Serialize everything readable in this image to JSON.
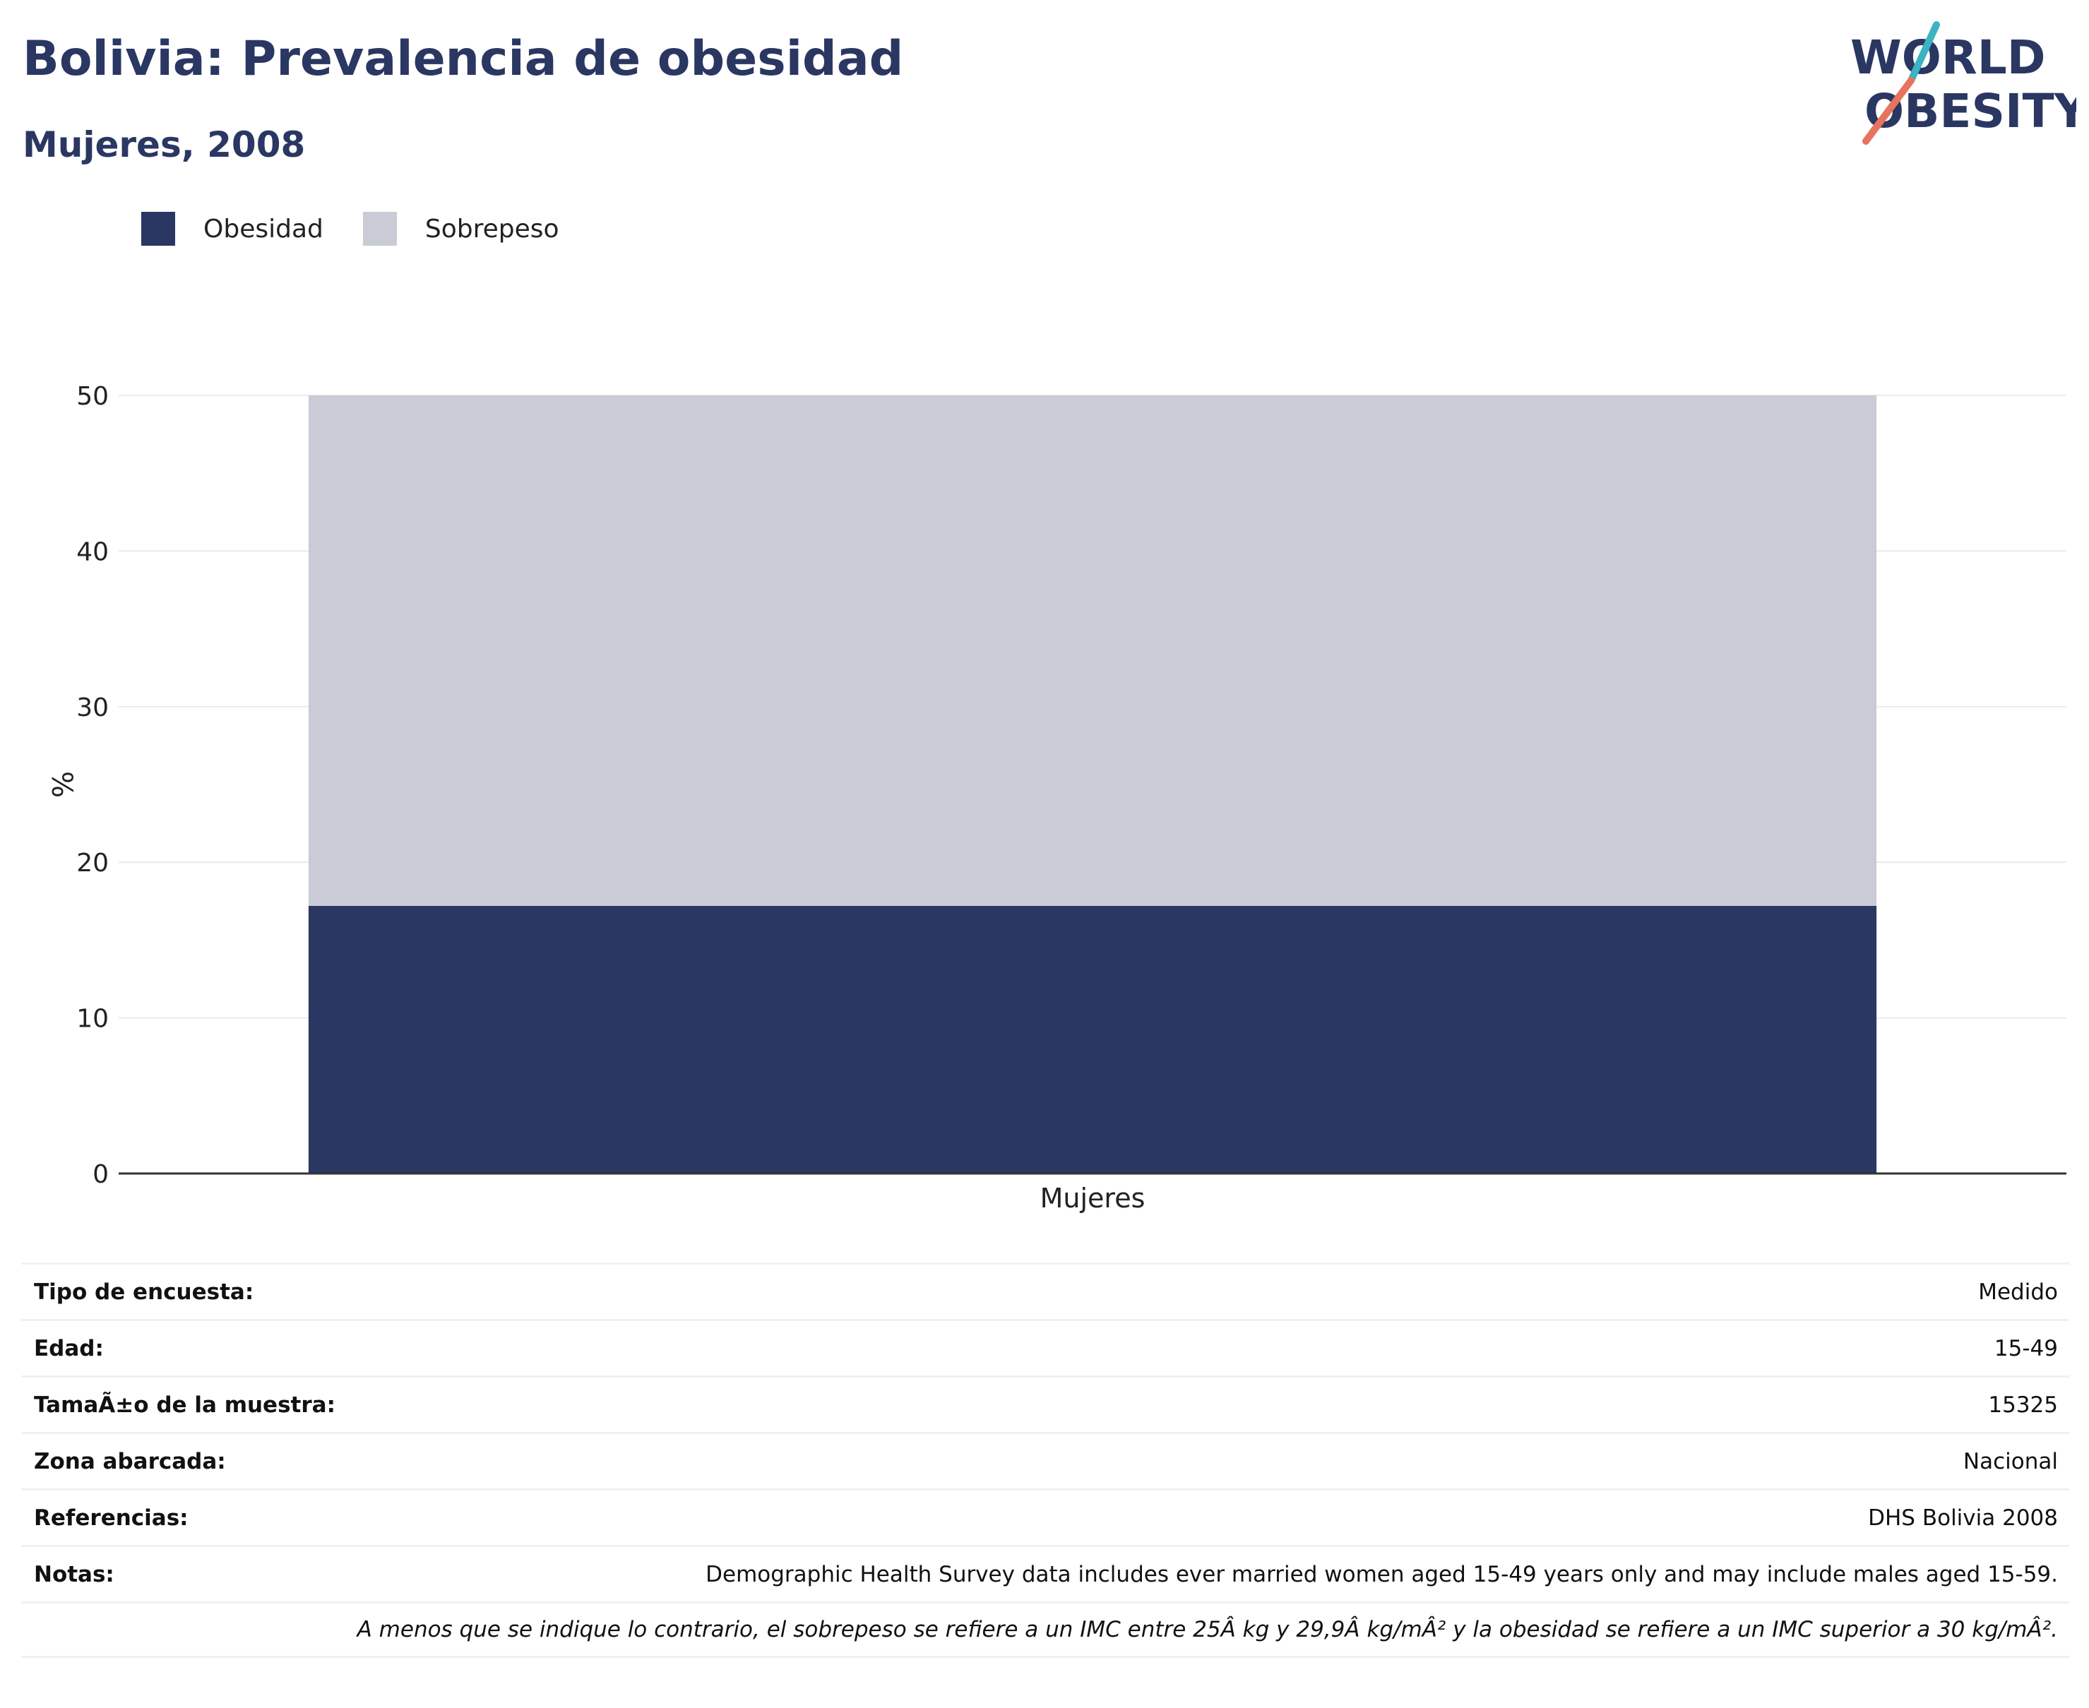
{
  "header": {
    "title": "Bolivia: Prevalencia de obesidad",
    "subtitle": "Mujeres, 2008"
  },
  "logo": {
    "line1": "WORLD",
    "line2": "OBESITY",
    "accent_teal": "#3bb3c3",
    "accent_coral": "#e8735f"
  },
  "colors": {
    "obesidad": "#2a3762",
    "sobrepeso": "#c9ccd7",
    "text": "#2a3762"
  },
  "chart_data": {
    "type": "bar",
    "stacked": true,
    "categories": [
      "Mujeres"
    ],
    "series": [
      {
        "name": "Obesidad",
        "values": [
          17.2
        ],
        "color": "#2a3762"
      },
      {
        "name": "Sobrepeso",
        "values": [
          32.8
        ],
        "color": "#c9ccd7"
      }
    ],
    "ylabel": "%",
    "xlabel": "",
    "ylim": [
      0,
      50
    ],
    "yticks": [
      0,
      10,
      20,
      30,
      40,
      50
    ],
    "grid": true,
    "legend_position": "top-left"
  },
  "info": {
    "rows": [
      {
        "key": "Tipo de encuesta:",
        "value": "Medido"
      },
      {
        "key": "Edad:",
        "value": "15-49"
      },
      {
        "key": "TamaÃ±o de la muestra:",
        "value": "15325"
      },
      {
        "key": "Zona abarcada:",
        "value": "Nacional"
      },
      {
        "key": "Referencias:",
        "value": "DHS Bolivia 2008"
      },
      {
        "key": "Notas:",
        "value": "Demographic Health Survey data includes ever married women aged 15-49 years only and may include males aged 15-59."
      }
    ],
    "footnote": "A menos que se indique lo contrario, el sobrepeso se refiere a un IMC entre 25Â kg y 29,9Â kg/mÂ² y la obesidad se refiere a un IMC superior a 30 kg/mÂ²."
  }
}
